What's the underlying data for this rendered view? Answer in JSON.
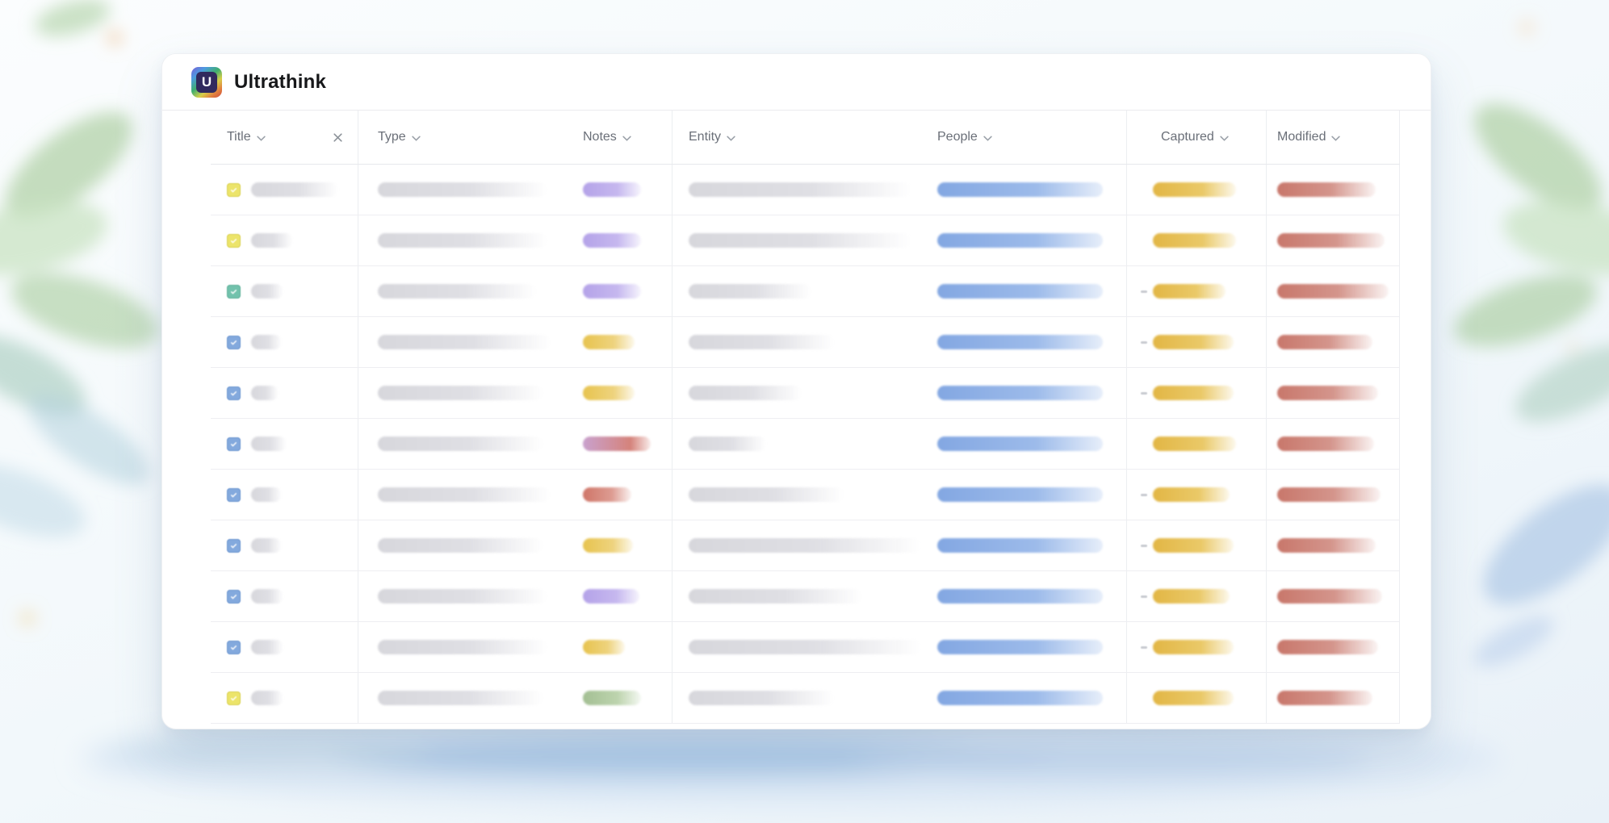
{
  "app": {
    "title": "Ultrathink",
    "logo_letter": "U"
  },
  "table": {
    "columns": [
      {
        "id": "title",
        "label": "Title",
        "has_clear": true
      },
      {
        "id": "type",
        "label": "Type"
      },
      {
        "id": "notes",
        "label": "Notes"
      },
      {
        "id": "entity",
        "label": "Entity"
      },
      {
        "id": "people",
        "label": "People"
      },
      {
        "id": "captured",
        "label": "Captured"
      },
      {
        "id": "modified",
        "label": "Modified"
      }
    ],
    "rows": [
      {
        "icon": "yellow",
        "title_w": 108,
        "type_w": 210,
        "notes": "purple",
        "notes_w": 72,
        "entity_w": 275,
        "people_w": 205,
        "captured_w": 103,
        "captured_dash": false,
        "modified_w": 122
      },
      {
        "icon": "yellow",
        "title_w": 52,
        "type_w": 210,
        "notes": "purple",
        "notes_w": 72,
        "entity_w": 275,
        "people_w": 205,
        "captured_w": 103,
        "captured_dash": false,
        "modified_w": 133
      },
      {
        "icon": "teal",
        "title_w": 40,
        "type_w": 196,
        "notes": "purple",
        "notes_w": 72,
        "entity_w": 152,
        "people_w": 205,
        "captured_w": 90,
        "captured_dash": true,
        "modified_w": 138
      },
      {
        "icon": "blue",
        "title_w": 38,
        "type_w": 214,
        "notes": "yellow",
        "notes_w": 64,
        "entity_w": 180,
        "people_w": 205,
        "captured_w": 100,
        "captured_dash": true,
        "modified_w": 118
      },
      {
        "icon": "blue",
        "title_w": 34,
        "type_w": 205,
        "notes": "yellow",
        "notes_w": 64,
        "entity_w": 140,
        "people_w": 205,
        "captured_w": 100,
        "captured_dash": true,
        "modified_w": 125
      },
      {
        "icon": "blue",
        "title_w": 44,
        "type_w": 205,
        "notes": "pink",
        "notes_w": 84,
        "entity_w": 96,
        "people_w": 205,
        "captured_w": 103,
        "captured_dash": false,
        "modified_w": 120
      },
      {
        "icon": "blue",
        "title_w": 38,
        "type_w": 214,
        "notes": "red",
        "notes_w": 60,
        "entity_w": 192,
        "people_w": 205,
        "captured_w": 95,
        "captured_dash": true,
        "modified_w": 128
      },
      {
        "icon": "blue",
        "title_w": 38,
        "type_w": 205,
        "notes": "yellow",
        "notes_w": 62,
        "entity_w": 288,
        "people_w": 205,
        "captured_w": 100,
        "captured_dash": true,
        "modified_w": 122
      },
      {
        "icon": "blue",
        "title_w": 40,
        "type_w": 210,
        "notes": "purple",
        "notes_w": 70,
        "entity_w": 215,
        "people_w": 205,
        "captured_w": 95,
        "captured_dash": true,
        "modified_w": 130
      },
      {
        "icon": "blue",
        "title_w": 40,
        "type_w": 210,
        "notes": "yellow",
        "notes_w": 52,
        "entity_w": 288,
        "people_w": 205,
        "captured_w": 100,
        "captured_dash": true,
        "modified_w": 125
      },
      {
        "icon": "yellow",
        "title_w": 40,
        "type_w": 205,
        "notes": "green",
        "notes_w": 72,
        "entity_w": 180,
        "people_w": 205,
        "captured_w": 100,
        "captured_dash": false,
        "modified_w": 118
      }
    ]
  },
  "palette": {
    "people_blue": "#83a7e2",
    "captured_gold": "#e2b645",
    "modified_red": "#c8776b",
    "notes_purple": "#b4a2e8",
    "notes_yellow": "#e7c34e",
    "notes_red": "#cf7568",
    "notes_green": "#a3bf93",
    "notes_pink": "#c9a1ce",
    "placeholder_gray": "#d9d9de",
    "icon_yellow": "#ece46a",
    "icon_teal": "#72c2ac",
    "icon_blue": "#83a9dd"
  }
}
